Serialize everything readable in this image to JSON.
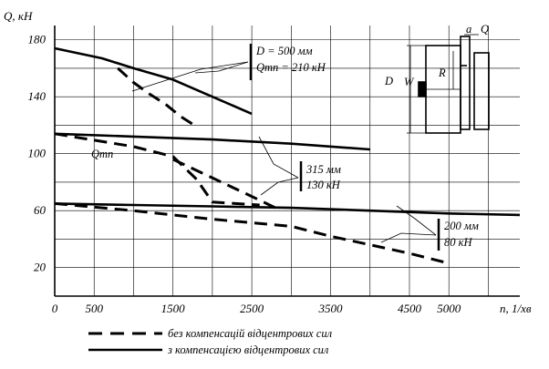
{
  "chart_data": {
    "type": "line",
    "ylabel": "Q, кН",
    "xlabel": "n,  1/хв",
    "xlim": [
      0,
      5900
    ],
    "ylim": [
      0,
      190
    ],
    "x_ticks": [
      "0",
      "500",
      "1500",
      "2500",
      "3500",
      "4500",
      "5000"
    ],
    "y_ticks": [
      "20",
      "60",
      "100",
      "140",
      "180"
    ],
    "grid": true,
    "series": [
      {
        "group": "D500",
        "style": "solid",
        "x": [
          0,
          600,
          1000,
          1500,
          2000,
          2500
        ],
        "y": [
          174,
          167,
          160,
          152,
          140,
          128
        ]
      },
      {
        "group": "D500",
        "style": "dashed",
        "x": [
          800,
          1000,
          1200,
          1400,
          1600,
          1800
        ],
        "y": [
          160,
          150,
          142,
          135,
          126,
          119
        ]
      },
      {
        "group": "D315",
        "style": "solid",
        "x": [
          0,
          1000,
          2000,
          3000,
          4000
        ],
        "y": [
          114,
          112,
          110,
          107,
          103
        ]
      },
      {
        "group": "D315",
        "style": "dashed",
        "x": [
          0,
          1000,
          1500,
          1800,
          2000,
          2600
        ],
        "y": [
          114,
          105,
          98,
          82,
          66,
          64
        ]
      },
      {
        "group": "D315",
        "style": "dashed",
        "x": [
          1500,
          2500,
          2800
        ],
        "y": [
          96,
          70,
          62
        ]
      },
      {
        "group": "D200",
        "style": "solid",
        "x": [
          0,
          1000,
          2000,
          3000,
          4000,
          5000,
          5900
        ],
        "y": [
          65,
          64,
          63,
          62,
          60,
          58,
          57
        ]
      },
      {
        "group": "D200",
        "style": "dashed",
        "x": [
          0,
          1000,
          2000,
          3000,
          3500,
          4500,
          5000
        ],
        "y": [
          65,
          60,
          54,
          49,
          42,
          30,
          23
        ]
      }
    ],
    "annotations": {
      "d500": [
        "D = 500 мм",
        "Qтп = 210 кН"
      ],
      "d315": [
        "315 мм",
        "130 кН"
      ],
      "d200": [
        "200 мм",
        "80 кН"
      ],
      "q_label": "Qтп"
    },
    "sketch_labels": {
      "D": "D",
      "W": "W",
      "R": "R",
      "a": "a",
      "Q": "Q"
    },
    "legend": [
      {
        "style": "dashed",
        "label": "без компенсацій відцентрових сил"
      },
      {
        "style": "solid",
        "label": "з компенсацією відцентрових сил"
      }
    ]
  }
}
